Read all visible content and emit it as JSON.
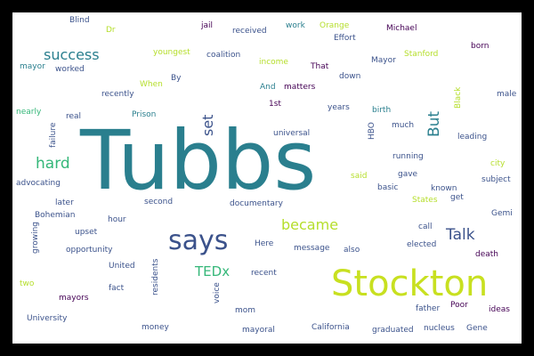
{
  "word_cloud": {
    "palette": {
      "frame": "#000000",
      "background": "#ffffff",
      "teal": "#2a7f8e",
      "yellow_green": "#b5de2b",
      "blue": "#3b528b",
      "purple": "#440154",
      "green": "#35b779"
    },
    "words": [
      {
        "text": "Tubbs"
      },
      {
        "text": "Stockton"
      },
      {
        "text": "says"
      },
      {
        "text": "success"
      },
      {
        "text": "hard"
      },
      {
        "text": "became"
      },
      {
        "text": "Talk"
      },
      {
        "text": "TEDx"
      },
      {
        "text": "set"
      },
      {
        "text": "But"
      },
      {
        "text": "Blind"
      },
      {
        "text": "jail"
      },
      {
        "text": "received"
      },
      {
        "text": "work"
      },
      {
        "text": "Orange"
      },
      {
        "text": "Michael"
      },
      {
        "text": "Dr"
      },
      {
        "text": "Effort"
      },
      {
        "text": "born"
      },
      {
        "text": "youngest"
      },
      {
        "text": "coalition"
      },
      {
        "text": "Mayor"
      },
      {
        "text": "Stanford"
      },
      {
        "text": "mayor"
      },
      {
        "text": "worked"
      },
      {
        "text": "income"
      },
      {
        "text": "That"
      },
      {
        "text": "down"
      },
      {
        "text": "When"
      },
      {
        "text": "By"
      },
      {
        "text": "recently"
      },
      {
        "text": "And"
      },
      {
        "text": "matters"
      },
      {
        "text": "Black"
      },
      {
        "text": "male"
      },
      {
        "text": "nearly"
      },
      {
        "text": "real"
      },
      {
        "text": "Prison"
      },
      {
        "text": "1st"
      },
      {
        "text": "years"
      },
      {
        "text": "birth"
      },
      {
        "text": "much"
      },
      {
        "text": "universal"
      },
      {
        "text": "leading"
      },
      {
        "text": "failure"
      },
      {
        "text": "HBO"
      },
      {
        "text": "running"
      },
      {
        "text": "city"
      },
      {
        "text": "advocating"
      },
      {
        "text": "said"
      },
      {
        "text": "gave"
      },
      {
        "text": "subject"
      },
      {
        "text": "basic"
      },
      {
        "text": "known"
      },
      {
        "text": "later"
      },
      {
        "text": "second"
      },
      {
        "text": "documentary"
      },
      {
        "text": "States"
      },
      {
        "text": "get"
      },
      {
        "text": "Bohemian"
      },
      {
        "text": "hour"
      },
      {
        "text": "Gemi"
      },
      {
        "text": "upset"
      },
      {
        "text": "Here"
      },
      {
        "text": "call"
      },
      {
        "text": "growing"
      },
      {
        "text": "opportunity"
      },
      {
        "text": "message"
      },
      {
        "text": "also"
      },
      {
        "text": "elected"
      },
      {
        "text": "death"
      },
      {
        "text": "United"
      },
      {
        "text": "residents"
      },
      {
        "text": "recent"
      },
      {
        "text": "two"
      },
      {
        "text": "fact"
      },
      {
        "text": "voice"
      },
      {
        "text": "mayors"
      },
      {
        "text": "mom"
      },
      {
        "text": "father"
      },
      {
        "text": "Poor"
      },
      {
        "text": "ideas"
      },
      {
        "text": "University"
      },
      {
        "text": "money"
      },
      {
        "text": "mayoral"
      },
      {
        "text": "California"
      },
      {
        "text": "graduated"
      },
      {
        "text": "nucleus"
      },
      {
        "text": "Gene"
      }
    ]
  }
}
